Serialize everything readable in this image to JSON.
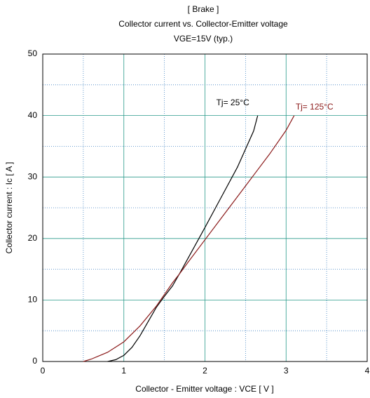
{
  "chart_data": {
    "type": "line",
    "title": "[ Brake ]",
    "subtitle": "Collector current  vs.  Collector-Emitter voltage",
    "condition": "VGE=15V  (typ.)",
    "x_label": "Collector - Emitter voltage  :  VCE  [ V ]",
    "y_label": "Collector current  :  Ic  [ A ]",
    "xlim": [
      0,
      4
    ],
    "xticks": [
      0,
      1,
      2,
      3,
      4
    ],
    "ylim": [
      0,
      50
    ],
    "yticks": [
      0,
      10,
      20,
      30,
      40,
      50
    ],
    "grid": true,
    "series": [
      {
        "name": "Tj= 25°C",
        "color": "#000000",
        "x": [
          0.8,
          0.9,
          1.0,
          1.1,
          1.2,
          1.3,
          1.4,
          1.5,
          1.6,
          1.7,
          1.8,
          2.0,
          2.2,
          2.4,
          2.6,
          2.65
        ],
        "values": [
          0,
          0.3,
          1,
          2.3,
          4.2,
          6.5,
          8.8,
          10.6,
          12.3,
          14.6,
          17,
          21.8,
          26.7,
          31.6,
          37.5,
          40
        ]
      },
      {
        "name": "Tj= 125°C",
        "color": "#8b1a1a",
        "x": [
          0.5,
          0.6,
          0.8,
          1.0,
          1.2,
          1.4,
          1.6,
          1.7,
          1.8,
          2.0,
          2.2,
          2.4,
          2.6,
          2.8,
          3.0,
          3.1
        ],
        "values": [
          0,
          0.4,
          1.5,
          3.2,
          5.8,
          9,
          12.8,
          14.5,
          16.3,
          19.8,
          23.3,
          26.8,
          30.3,
          33.8,
          37.6,
          40
        ]
      }
    ]
  }
}
